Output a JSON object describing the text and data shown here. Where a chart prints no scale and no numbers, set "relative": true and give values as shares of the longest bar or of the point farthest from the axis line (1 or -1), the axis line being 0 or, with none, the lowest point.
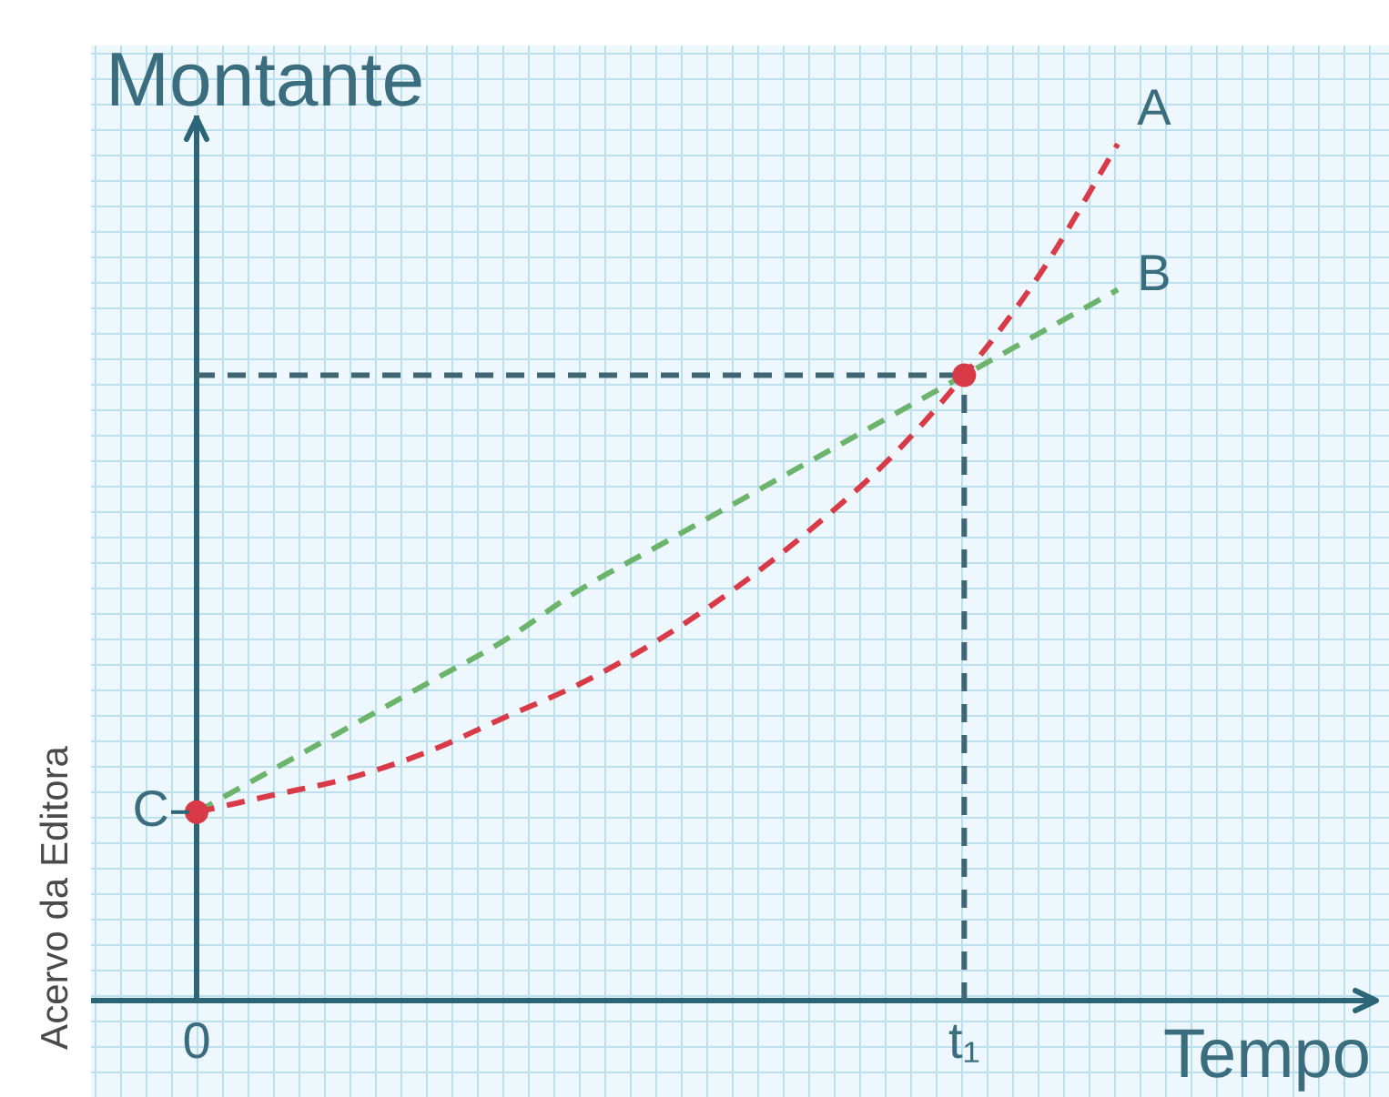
{
  "chart_data": {
    "type": "line",
    "xlabel": "Tempo",
    "ylabel": "Montante",
    "relative": true,
    "line_style": "dashed",
    "categories": [
      "0",
      null,
      null,
      null,
      null,
      null,
      null,
      null,
      null,
      null,
      "t₁",
      null,
      null
    ],
    "series": [
      {
        "name": "A",
        "color": "#d93a48",
        "values": [
          0.22,
          0.24,
          0.26,
          0.29,
          0.33,
          0.37,
          0.42,
          0.48,
          0.55,
          0.63,
          0.73,
          0.85,
          1
        ]
      },
      {
        "name": "B",
        "color": "#6cb46c",
        "values": [
          0.22,
          0.27,
          0.32,
          0.37,
          0.42,
          0.48,
          0.53,
          0.58,
          0.63,
          0.68,
          0.73,
          0.78,
          0.83
        ]
      },
      {
        "type": "scatter",
        "color": "#d93a48",
        "marker": "circle",
        "x": [
          "0",
          "t₁"
        ],
        "values": [
          0.22,
          0.73
        ]
      },
      {
        "type": "line",
        "color": "#3f6672",
        "x": [
          "t₁",
          "t₁"
        ],
        "values": [
          0,
          0.73
        ]
      },
      {
        "type": "line",
        "color": "#3f6672",
        "x": [
          "0",
          "t₁"
        ],
        "values": [
          0.73,
          0.73
        ]
      }
    ],
    "annotations": [
      {
        "text": "C",
        "x": "0",
        "y": 0.22
      },
      "Acervo da Editora"
    ]
  }
}
